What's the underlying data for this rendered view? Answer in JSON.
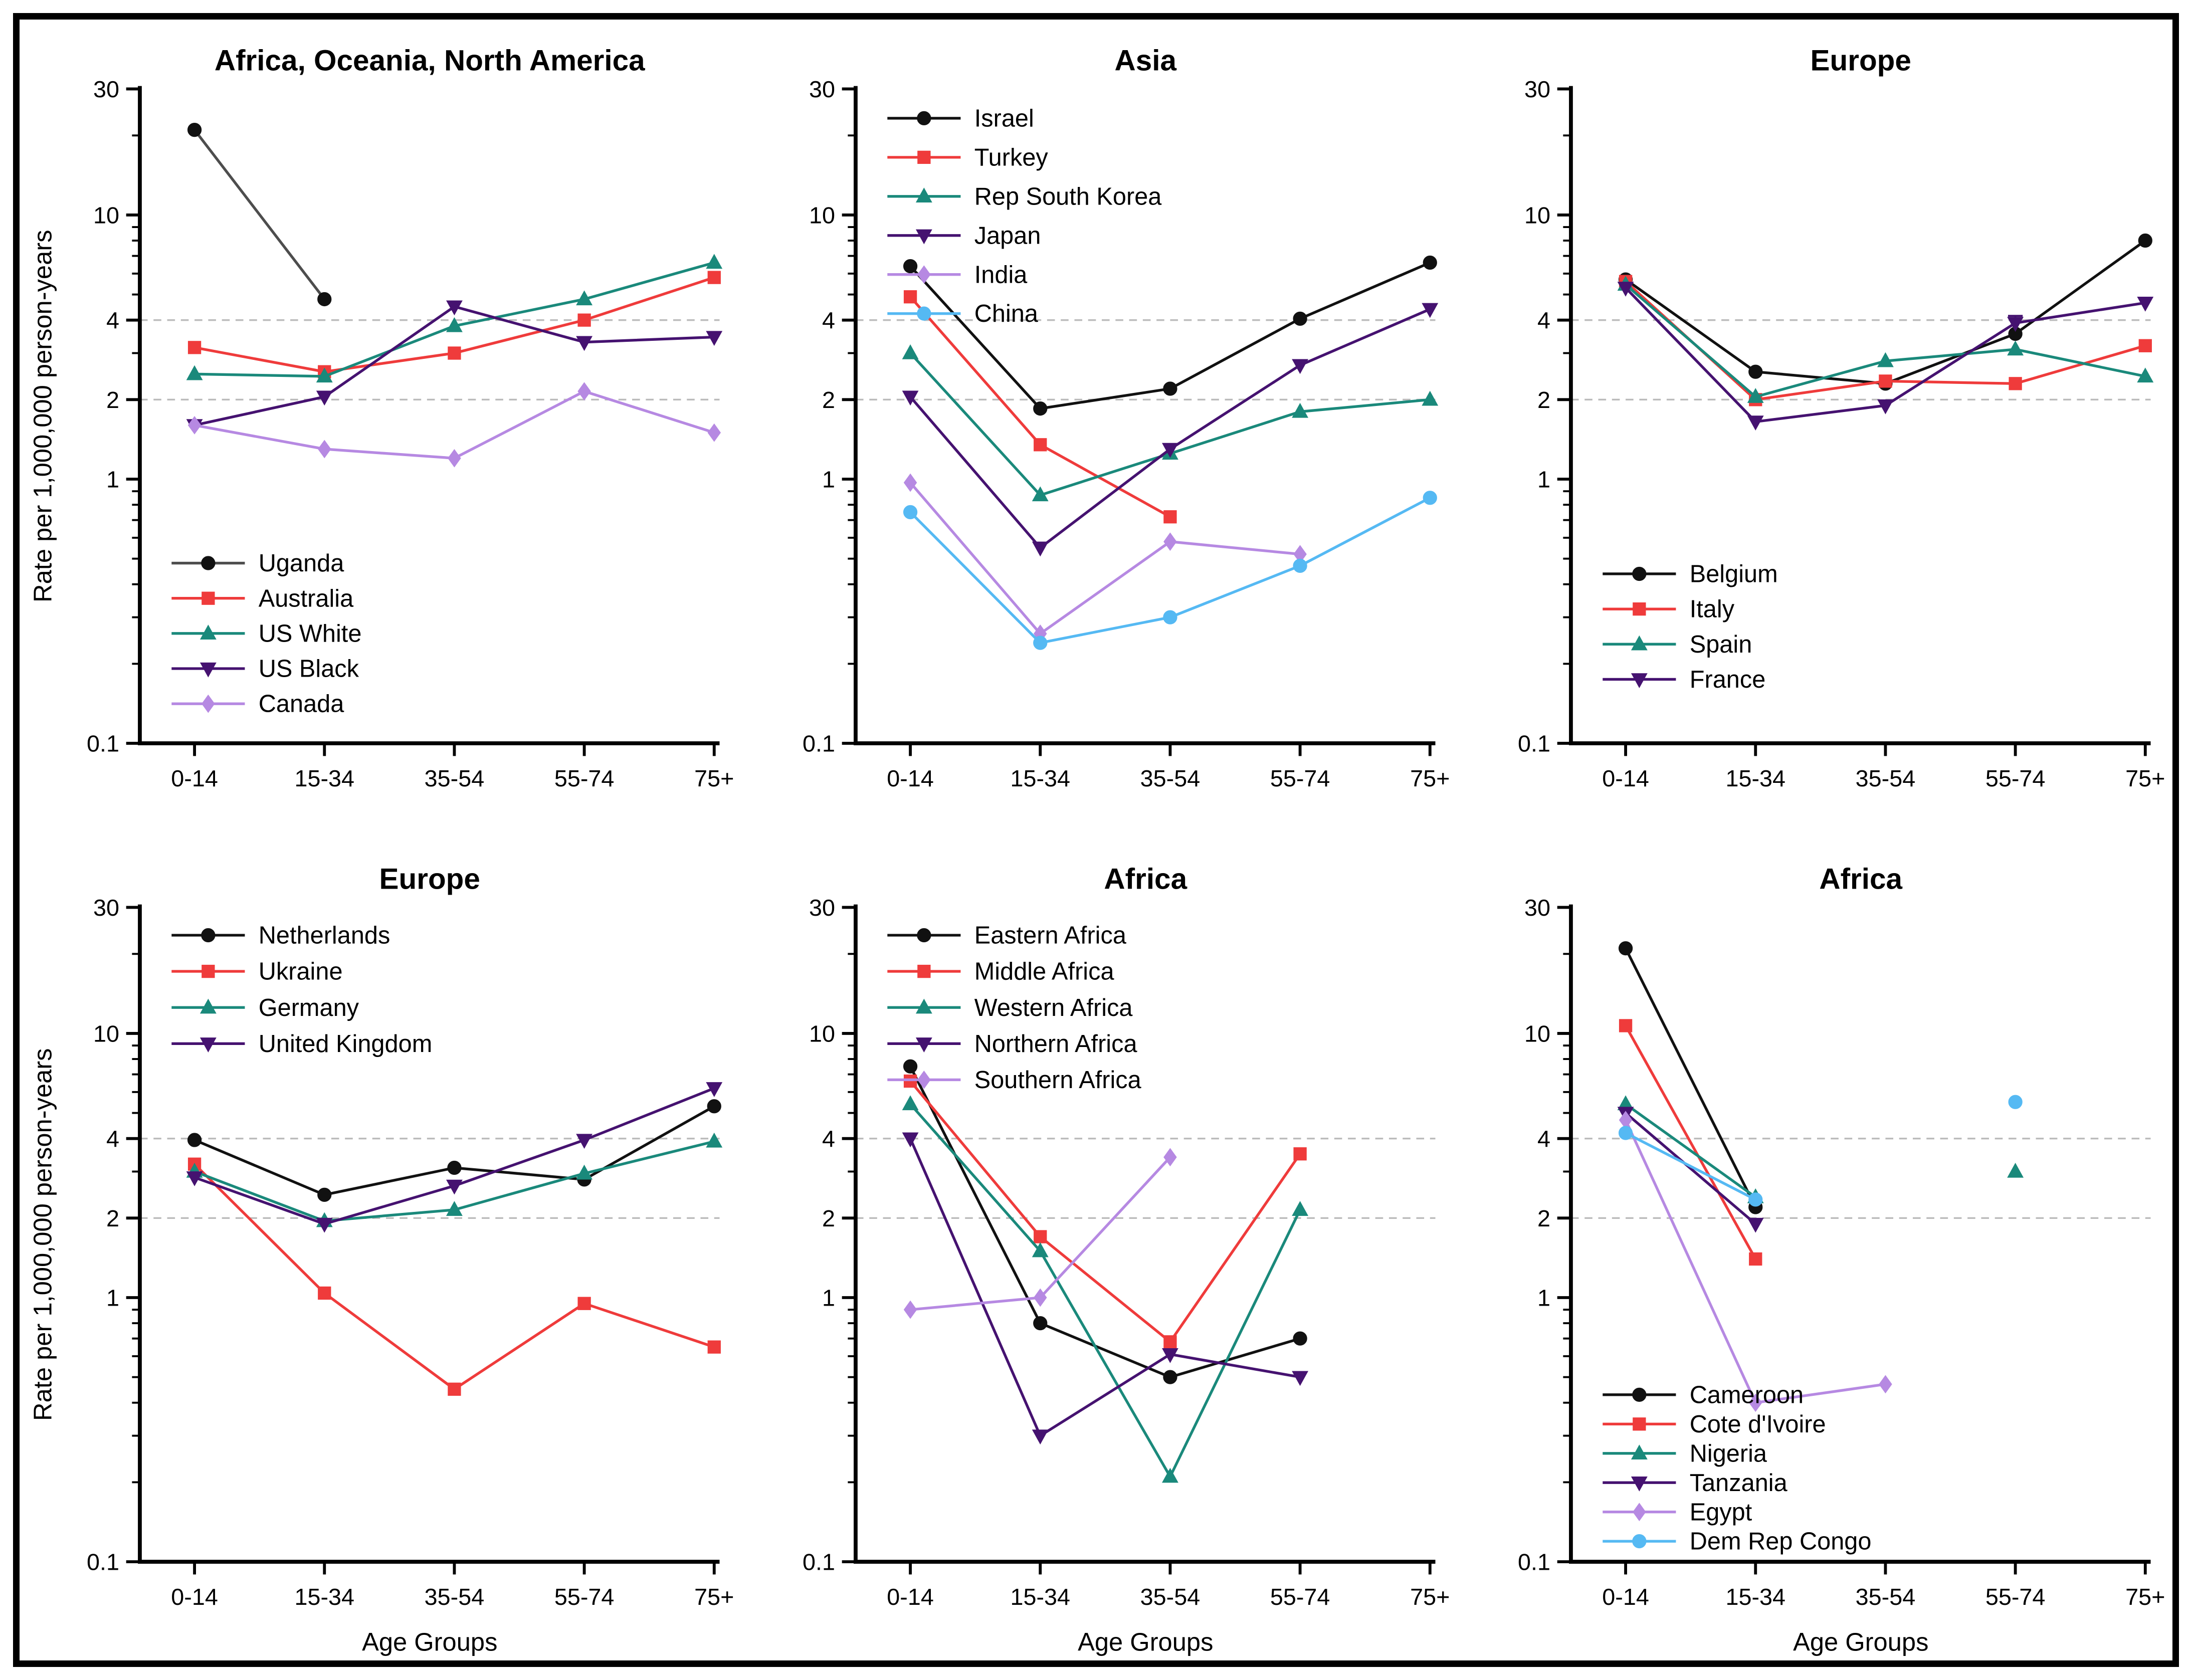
{
  "figure": {
    "ylabel": "Rate per 1,000,000 person-years",
    "xlabel": "Age Groups",
    "background": "#ffffff",
    "frame_color": "#000000"
  },
  "palette": {
    "black": "#111111",
    "gray_line": "#4d4d4d",
    "red": "#ef3b3b",
    "teal": "#1a897b",
    "dark_purple": "#451270",
    "light_purple": "#b689e2",
    "light_blue": "#55b9f3",
    "grid_gray": "#bbbbbb"
  },
  "axis_defaults": {
    "categories": [
      "0-14",
      "15-34",
      "35-54",
      "55-74",
      "75+"
    ],
    "ylim": [
      0.1,
      30
    ],
    "yticks": [
      0.1,
      1,
      2,
      4,
      10,
      30
    ],
    "ytick_labels": [
      "0.1",
      "1",
      "2",
      "4",
      "10",
      "30"
    ],
    "minor_ticks": [
      0.2,
      0.3,
      0.4,
      0.5,
      0.6,
      0.7,
      0.8,
      0.9,
      3,
      5,
      6,
      7,
      8,
      9,
      20
    ],
    "gridlines": [
      2,
      4
    ],
    "grid_on": true,
    "scale": "log"
  },
  "chart_data": [
    {
      "type": "line",
      "title": "Africa, Oceania, North America",
      "categories": [
        "0-14",
        "15-34",
        "35-54",
        "55-74",
        "75+"
      ],
      "ylim": [
        0.1,
        30
      ],
      "show_ylabel": true,
      "show_xlabel": false,
      "legend_position": "bottom-left",
      "legend_spacing": 72,
      "legend_bottom_gap": 45,
      "series": [
        {
          "name": "Uganda",
          "color": "black",
          "line_color": "gray_line",
          "marker": "circle",
          "values": [
            21,
            4.8,
            null,
            null,
            null
          ]
        },
        {
          "name": "Australia",
          "color": "red",
          "marker": "square",
          "values": [
            3.15,
            2.55,
            3.0,
            4.0,
            5.8
          ]
        },
        {
          "name": "US White",
          "color": "teal",
          "marker": "triangle-up",
          "values": [
            2.5,
            2.45,
            3.8,
            4.8,
            6.6
          ]
        },
        {
          "name": "US Black",
          "color": "dark_purple",
          "marker": "triangle-down",
          "values": [
            1.6,
            2.05,
            4.5,
            3.3,
            3.45
          ]
        },
        {
          "name": "Canada",
          "color": "light_purple",
          "marker": "diamond",
          "values": [
            1.6,
            1.3,
            1.2,
            2.15,
            1.5
          ]
        }
      ]
    },
    {
      "type": "line",
      "title": "Asia",
      "categories": [
        "0-14",
        "15-34",
        "35-54",
        "55-74",
        "75+"
      ],
      "ylim": [
        0.1,
        30
      ],
      "show_ylabel": false,
      "show_xlabel": false,
      "legend_position": "top-left",
      "legend_spacing": 80,
      "series": [
        {
          "name": "Israel",
          "color": "black",
          "marker": "circle",
          "values": [
            6.4,
            1.85,
            2.2,
            4.05,
            6.6
          ]
        },
        {
          "name": "Turkey",
          "color": "red",
          "marker": "square",
          "values": [
            4.9,
            1.35,
            0.72,
            null,
            null
          ]
        },
        {
          "name": "Rep South Korea",
          "color": "teal",
          "marker": "triangle-up",
          "values": [
            3.0,
            0.87,
            1.25,
            1.8,
            2.0
          ]
        },
        {
          "name": "Japan",
          "color": "dark_purple",
          "marker": "triangle-down",
          "values": [
            2.05,
            0.55,
            1.3,
            2.7,
            4.4
          ]
        },
        {
          "name": "India",
          "color": "light_purple",
          "marker": "diamond",
          "values": [
            0.97,
            0.26,
            0.58,
            0.52,
            null
          ]
        },
        {
          "name": "China",
          "color": "light_blue",
          "marker": "circle",
          "values": [
            0.75,
            0.24,
            0.3,
            0.47,
            0.85
          ]
        }
      ]
    },
    {
      "type": "line",
      "title": "Europe",
      "categories": [
        "0-14",
        "15-34",
        "35-54",
        "55-74",
        "75+"
      ],
      "ylim": [
        0.1,
        30
      ],
      "show_ylabel": false,
      "show_xlabel": false,
      "legend_position": "bottom-left",
      "legend_spacing": 72,
      "legend_bottom_gap": 95,
      "series": [
        {
          "name": "Belgium",
          "color": "black",
          "marker": "circle",
          "values": [
            5.7,
            2.55,
            2.3,
            3.55,
            8.0
          ]
        },
        {
          "name": "Italy",
          "color": "red",
          "marker": "square",
          "values": [
            5.6,
            2.0,
            2.35,
            2.3,
            3.2
          ]
        },
        {
          "name": "Spain",
          "color": "teal",
          "marker": "triangle-up",
          "values": [
            5.45,
            2.05,
            2.8,
            3.1,
            2.45
          ]
        },
        {
          "name": "France",
          "color": "dark_purple",
          "marker": "triangle-down",
          "values": [
            5.3,
            1.65,
            1.9,
            3.9,
            4.65
          ],
          "error_bars": [
            {
              "index": 3,
              "high": 4.15
            }
          ]
        }
      ]
    },
    {
      "type": "line",
      "title": "Europe",
      "categories": [
        "0-14",
        "15-34",
        "35-54",
        "55-74",
        "75+"
      ],
      "ylim": [
        0.1,
        30
      ],
      "show_ylabel": true,
      "show_xlabel": true,
      "legend_position": "top-left",
      "legend_spacing": 74,
      "series": [
        {
          "name": "Netherlands",
          "color": "black",
          "marker": "circle",
          "values": [
            3.95,
            2.45,
            3.1,
            2.8,
            5.3
          ]
        },
        {
          "name": "Ukraine",
          "color": "red",
          "marker": "square",
          "values": [
            3.2,
            1.04,
            0.45,
            0.95,
            0.65
          ]
        },
        {
          "name": "Germany",
          "color": "teal",
          "marker": "triangle-up",
          "values": [
            3.0,
            1.95,
            2.15,
            2.95,
            3.9
          ]
        },
        {
          "name": "United Kingdom",
          "color": "dark_purple",
          "marker": "triangle-down",
          "values": [
            2.85,
            1.9,
            2.65,
            3.95,
            6.2
          ]
        }
      ]
    },
    {
      "type": "line",
      "title": "Africa",
      "categories": [
        "0-14",
        "15-34",
        "35-54",
        "55-74",
        "75+"
      ],
      "ylim": [
        0.1,
        30
      ],
      "show_ylabel": false,
      "show_xlabel": true,
      "legend_position": "top-left",
      "legend_spacing": 74,
      "series": [
        {
          "name": "Eastern Africa",
          "color": "black",
          "marker": "circle",
          "values": [
            7.5,
            0.8,
            0.5,
            0.7,
            null
          ]
        },
        {
          "name": "Middle Africa",
          "color": "red",
          "marker": "square",
          "values": [
            6.6,
            1.7,
            0.68,
            3.5,
            null
          ]
        },
        {
          "name": "Western Africa",
          "color": "teal",
          "marker": "triangle-up",
          "values": [
            5.4,
            1.5,
            0.21,
            2.15,
            null
          ]
        },
        {
          "name": "Northern Africa",
          "color": "dark_purple",
          "marker": "triangle-down",
          "values": [
            4.0,
            0.3,
            0.61,
            0.5,
            null
          ]
        },
        {
          "name": "Southern Africa",
          "color": "light_purple",
          "marker": "diamond",
          "values": [
            0.9,
            1.0,
            3.4,
            null,
            null
          ]
        }
      ]
    },
    {
      "type": "line",
      "title": "Africa",
      "categories": [
        "0-14",
        "15-34",
        "35-54",
        "55-74",
        "75+"
      ],
      "ylim": [
        0.1,
        30
      ],
      "show_ylabel": false,
      "show_xlabel": true,
      "legend_position": "bottom-left",
      "legend_spacing": 60,
      "legend_bottom_gap": 12,
      "series": [
        {
          "name": "Cameroon",
          "color": "black",
          "marker": "circle",
          "values": [
            21,
            2.2,
            null,
            null,
            null
          ]
        },
        {
          "name": "Cote d'Ivoire",
          "color": "red",
          "marker": "square",
          "values": [
            10.7,
            1.4,
            null,
            null,
            null
          ]
        },
        {
          "name": "Nigeria",
          "color": "teal",
          "marker": "triangle-up",
          "values": [
            5.4,
            2.4,
            null,
            3.0,
            null
          ]
        },
        {
          "name": "Tanzania",
          "color": "dark_purple",
          "marker": "triangle-down",
          "values": [
            5.0,
            1.9,
            null,
            null,
            null
          ]
        },
        {
          "name": "Egypt",
          "color": "light_purple",
          "marker": "diamond",
          "values": [
            4.7,
            0.4,
            0.47,
            null,
            null
          ]
        },
        {
          "name": "Dem Rep Congo",
          "color": "light_blue",
          "marker": "circle",
          "values": [
            4.2,
            2.35,
            null,
            5.5,
            null
          ]
        }
      ]
    }
  ]
}
